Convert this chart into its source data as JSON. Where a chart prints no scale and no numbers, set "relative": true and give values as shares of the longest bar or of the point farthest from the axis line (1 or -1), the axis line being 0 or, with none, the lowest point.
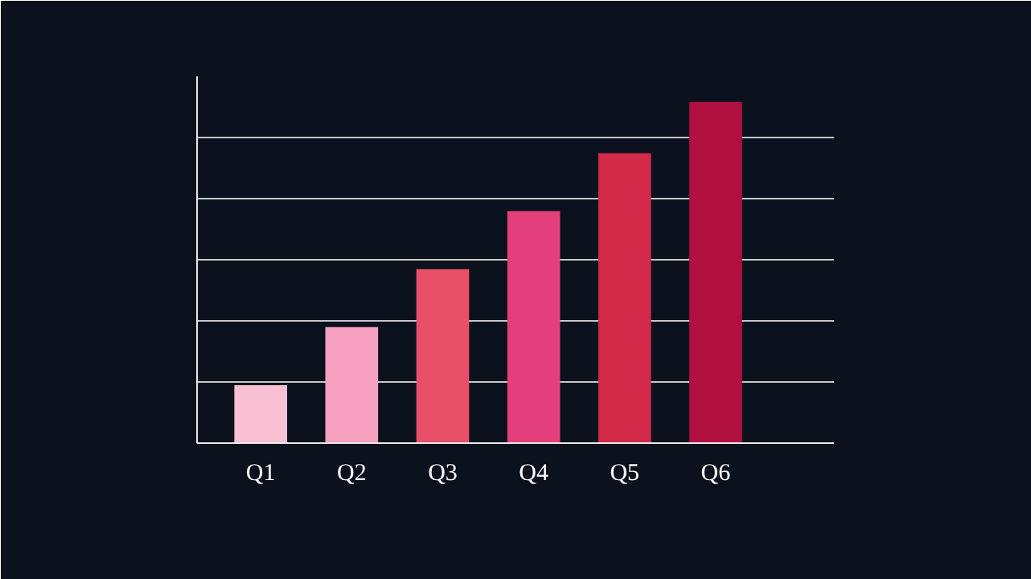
{
  "chart_data": {
    "type": "bar",
    "relative": true,
    "categories": [
      "Q1",
      "Q2",
      "Q3",
      "Q4",
      "Q5",
      "Q6"
    ],
    "values": [
      0.17,
      0.34,
      0.51,
      0.68,
      0.85,
      1.0
    ],
    "colors": [
      "#f9c0d4",
      "#f7a1c0",
      "#e8506a",
      "#e23f7c",
      "#d42a4a",
      "#b0103f"
    ],
    "grid": "y"
  }
}
